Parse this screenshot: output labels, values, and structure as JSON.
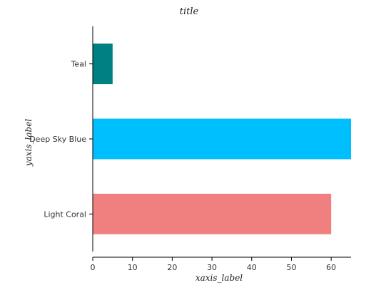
{
  "chart_data": {
    "type": "bar",
    "orientation": "horizontal",
    "title": "title",
    "xlabel": "xaxis_label",
    "ylabel": "yaxis_label",
    "categories": [
      "Light Coral",
      "Deep Sky Blue",
      "Teal"
    ],
    "values": [
      60,
      65,
      5
    ],
    "colors": [
      "#f08080",
      "#00bfff",
      "#008080"
    ],
    "xlim": [
      0,
      65
    ],
    "xticks": [
      0,
      10,
      20,
      30,
      40,
      50,
      60
    ],
    "grid": false,
    "legend": "none"
  }
}
